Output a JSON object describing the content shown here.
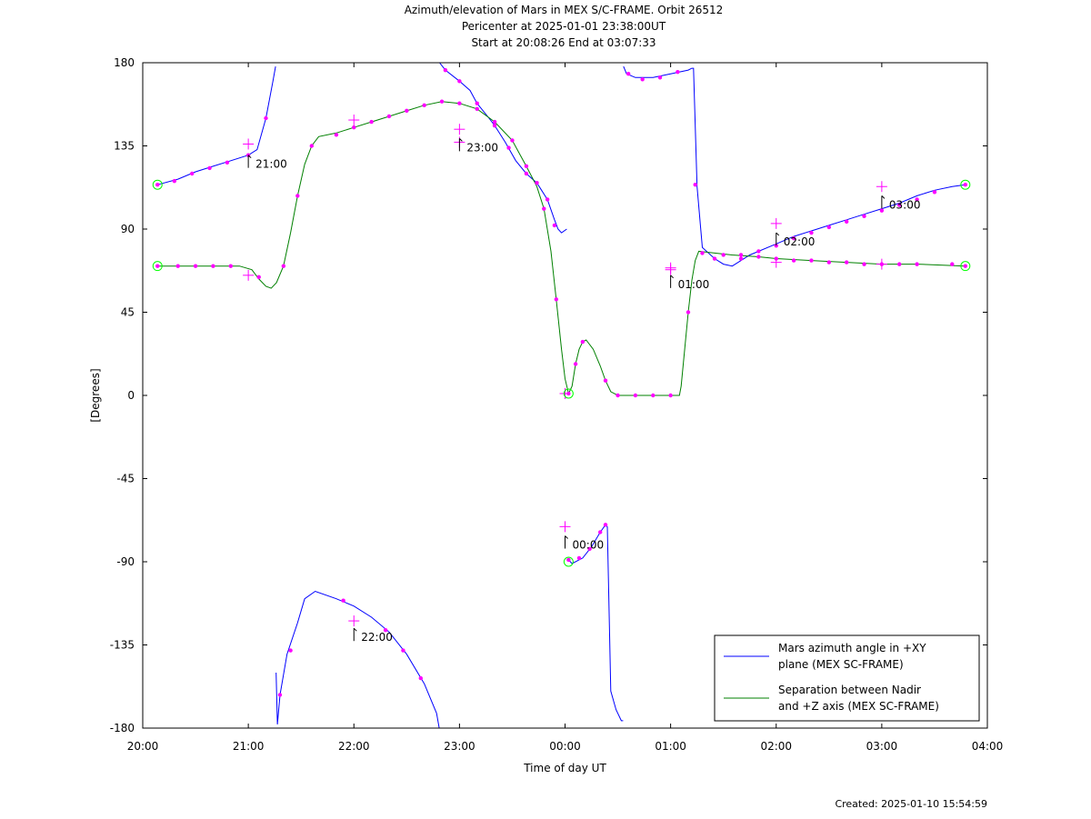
{
  "header": {
    "title": "Azimuth/elevation of Mars in MEX S/C-FRAME.  Orbit 26512",
    "subtitle_1": "Pericenter at 2025-01-01 23:38:00UT",
    "subtitle_2": "Start at 20:08:26 End at 03:07:33"
  },
  "footer": {
    "created": "Created: 2025-01-10 15:54:59"
  },
  "colors": {
    "azimuth": "#0000ff",
    "separation": "#008000",
    "markers": "#ff00ff",
    "endpoints": "#00ff00"
  },
  "chart_data": {
    "type": "line",
    "title": "Azimuth/elevation of Mars in MEX S/C-FRAME.  Orbit 26512",
    "xlabel": "Time of day UT",
    "ylabel": "[Degrees]",
    "xlim": [
      0,
      480
    ],
    "ylim": [
      -180,
      180
    ],
    "x_unit": "minutes after 20:00 UT",
    "xticks": [
      0,
      60,
      120,
      180,
      240,
      300,
      360,
      420,
      480
    ],
    "xtick_labels": [
      "20:00",
      "21:00",
      "22:00",
      "23:00",
      "00:00",
      "01:00",
      "02:00",
      "03:00",
      "04:00"
    ],
    "yticks": [
      180,
      135,
      90,
      45,
      0,
      -45,
      -90,
      -135,
      -180
    ],
    "ytick_labels": [
      "180",
      "135",
      "90",
      "45",
      "0",
      "-45",
      "-90",
      "-135",
      "-180"
    ],
    "legend_position": "bottom-right",
    "series": [
      {
        "name": "Mars azimuth angle in +XY plane (MEX SC-FRAME)",
        "legend_lines": [
          "Mars azimuth angle in +XY",
          "plane (MEX SC-FRAME)"
        ],
        "color": "#0000ff",
        "segments": [
          [
            [
              8.4,
              114
            ],
            [
              20,
              117
            ],
            [
              30,
              121
            ],
            [
              40,
              124
            ],
            [
              50,
              127
            ],
            [
              60,
              130
            ],
            [
              65,
              133
            ],
            [
              70,
              150
            ],
            [
              74,
              170
            ],
            [
              75.5,
              178
            ]
          ],
          [
            [
              75.8,
              -150
            ],
            [
              76.5,
              -178
            ],
            [
              78,
              -162
            ],
            [
              82,
              -140
            ],
            [
              88,
              -123
            ],
            [
              92,
              -110
            ],
            [
              98,
              -106
            ],
            [
              110,
              -110
            ],
            [
              120,
              -114
            ],
            [
              130,
              -120
            ],
            [
              140,
              -128
            ],
            [
              150,
              -140
            ],
            [
              160,
              -156
            ],
            [
              167,
              -172
            ],
            [
              168.5,
              -180
            ]
          ],
          [
            [
              168.7,
              180
            ],
            [
              172,
              176
            ],
            [
              180,
              170
            ],
            [
              186,
              165
            ],
            [
              190,
              158
            ],
            [
              196,
              151
            ],
            [
              200,
              146
            ],
            [
              206,
              137
            ],
            [
              212,
              127
            ],
            [
              218,
              120
            ],
            [
              224,
              115
            ],
            [
              226,
              112
            ],
            [
              230,
              106
            ],
            [
              234,
              95
            ],
            [
              236,
              90
            ],
            [
              238,
              88
            ],
            [
              241,
              90
            ]
          ],
          [
            [
              242,
              -89
            ],
            [
              244,
              -91
            ],
            [
              250,
              -88
            ],
            [
              255,
              -82
            ],
            [
              260,
              -74
            ],
            [
              263,
              -70
            ],
            [
              264,
              -71
            ],
            [
              266,
              -160
            ],
            [
              269,
              -170
            ],
            [
              272,
              -176
            ],
            [
              273,
              -176
            ]
          ],
          [
            [
              273.2,
              178
            ],
            [
              275,
              174
            ],
            [
              280,
              172
            ],
            [
              290,
              172
            ],
            [
              300,
              174
            ],
            [
              310,
              176
            ],
            [
              312,
              177
            ],
            [
              313,
              177
            ],
            [
              315,
              113
            ],
            [
              318,
              80
            ],
            [
              325,
              74
            ],
            [
              330,
              71
            ],
            [
              335,
              70
            ],
            [
              345,
              76
            ],
            [
              360,
              82
            ],
            [
              370,
              86
            ],
            [
              380,
              89
            ],
            [
              390,
              92
            ],
            [
              400,
              95
            ],
            [
              410,
              98
            ],
            [
              420,
              101
            ],
            [
              430,
              104
            ],
            [
              440,
              108
            ],
            [
              450,
              111
            ],
            [
              460,
              113
            ],
            [
              467.5,
              114
            ]
          ]
        ],
        "markers": [
          [
            8.4,
            114
          ],
          [
            18,
            116
          ],
          [
            28,
            120
          ],
          [
            38,
            123
          ],
          [
            48,
            126
          ],
          [
            60,
            130
          ],
          [
            70,
            150
          ],
          [
            78,
            -162
          ],
          [
            84,
            -138
          ],
          [
            114,
            -111
          ],
          [
            138,
            -127
          ],
          [
            148,
            -138
          ],
          [
            158,
            -153
          ],
          [
            172,
            176
          ],
          [
            180,
            170
          ],
          [
            190,
            158
          ],
          [
            200,
            146
          ],
          [
            208,
            134
          ],
          [
            218,
            120
          ],
          [
            224,
            115
          ],
          [
            230,
            106
          ],
          [
            234,
            92
          ],
          [
            242,
            -89
          ],
          [
            248,
            -88
          ],
          [
            254,
            -83
          ],
          [
            260,
            -74
          ],
          [
            263,
            -70
          ],
          [
            276,
            174
          ],
          [
            284,
            171
          ],
          [
            294,
            172
          ],
          [
            304,
            175
          ],
          [
            314,
            114
          ],
          [
            325,
            74
          ],
          [
            340,
            74
          ],
          [
            350,
            78
          ],
          [
            360,
            81
          ],
          [
            370,
            85
          ],
          [
            380,
            88
          ],
          [
            390,
            91
          ],
          [
            400,
            94
          ],
          [
            410,
            97
          ],
          [
            420,
            100
          ],
          [
            430,
            103
          ],
          [
            440,
            106
          ],
          [
            450,
            110
          ],
          [
            467.5,
            114
          ]
        ],
        "hour_marks": [
          [
            60,
            136
          ],
          [
            120,
            -122
          ],
          [
            180,
            137
          ],
          [
            240,
            -71
          ],
          [
            300,
            69
          ],
          [
            360,
            93
          ],
          [
            420,
            113
          ]
        ],
        "endpoints": [
          [
            8.4,
            114
          ],
          [
            467.5,
            114
          ],
          [
            242,
            -90
          ]
        ]
      },
      {
        "name": "Separation between Nadir and +Z axis (MEX SC-FRAME)",
        "legend_lines": [
          "Separation between Nadir",
          "and +Z axis (MEX SC-FRAME)"
        ],
        "color": "#008000",
        "segments": [
          [
            [
              8.4,
              70
            ],
            [
              20,
              70
            ],
            [
              40,
              70
            ],
            [
              55,
              70
            ],
            [
              62,
              68
            ],
            [
              66,
              63
            ],
            [
              70,
              59
            ],
            [
              73,
              58
            ],
            [
              76,
              61
            ],
            [
              80,
              70
            ],
            [
              84,
              88
            ],
            [
              88,
              108
            ],
            [
              92,
              125
            ],
            [
              96,
              135
            ],
            [
              100,
              140
            ],
            [
              110,
              142
            ],
            [
              120,
              145
            ],
            [
              130,
              148
            ],
            [
              140,
              151
            ],
            [
              150,
              154
            ],
            [
              160,
              157
            ],
            [
              170,
              159
            ],
            [
              180,
              158
            ],
            [
              190,
              155
            ],
            [
              200,
              148
            ],
            [
              210,
              138
            ],
            [
              218,
              124
            ],
            [
              224,
              113
            ],
            [
              228,
              101
            ],
            [
              232,
              78
            ],
            [
              235,
              52
            ],
            [
              238,
              25
            ],
            [
              240,
              9
            ],
            [
              242,
              1
            ],
            [
              244,
              5
            ],
            [
              246,
              17
            ],
            [
              248,
              25
            ],
            [
              250,
              29
            ],
            [
              252,
              30
            ],
            [
              256,
              25
            ],
            [
              260,
              16
            ],
            [
              263,
              8
            ],
            [
              266,
              2
            ],
            [
              270,
              0
            ],
            [
              280,
              0
            ],
            [
              290,
              0
            ],
            [
              300,
              0
            ],
            [
              305,
              0
            ],
            [
              306,
              5
            ],
            [
              308,
              25
            ],
            [
              310,
              45
            ],
            [
              312,
              62
            ],
            [
              314,
              73
            ],
            [
              316,
              78
            ],
            [
              325,
              77
            ],
            [
              335,
              76
            ],
            [
              350,
              75
            ],
            [
              360,
              74
            ],
            [
              380,
              73
            ],
            [
              400,
              72
            ],
            [
              420,
              71
            ],
            [
              440,
              71
            ],
            [
              467.5,
              70
            ]
          ]
        ],
        "markers": [
          [
            8.4,
            70
          ],
          [
            20,
            70
          ],
          [
            30,
            70
          ],
          [
            40,
            70
          ],
          [
            50,
            70
          ],
          [
            66,
            64
          ],
          [
            80,
            70
          ],
          [
            88,
            108
          ],
          [
            96,
            135
          ],
          [
            110,
            141
          ],
          [
            120,
            145
          ],
          [
            130,
            148
          ],
          [
            140,
            151
          ],
          [
            150,
            154
          ],
          [
            160,
            157
          ],
          [
            170,
            159
          ],
          [
            180,
            158
          ],
          [
            190,
            155
          ],
          [
            200,
            148
          ],
          [
            210,
            138
          ],
          [
            218,
            124
          ],
          [
            228,
            101
          ],
          [
            235,
            52
          ],
          [
            242,
            1
          ],
          [
            246,
            17
          ],
          [
            250,
            29
          ],
          [
            263,
            8
          ],
          [
            270,
            0
          ],
          [
            280,
            0
          ],
          [
            290,
            0
          ],
          [
            300,
            0
          ],
          [
            310,
            45
          ],
          [
            318,
            77
          ],
          [
            330,
            76
          ],
          [
            340,
            76
          ],
          [
            350,
            75
          ],
          [
            360,
            74
          ],
          [
            370,
            73
          ],
          [
            380,
            73
          ],
          [
            390,
            72
          ],
          [
            400,
            72
          ],
          [
            410,
            71
          ],
          [
            420,
            71
          ],
          [
            430,
            71
          ],
          [
            440,
            71
          ],
          [
            460,
            71
          ],
          [
            467.5,
            70
          ]
        ],
        "hour_marks": [
          [
            60,
            65
          ],
          [
            120,
            149
          ],
          [
            180,
            144
          ],
          [
            240,
            1
          ],
          [
            300,
            68
          ],
          [
            360,
            72
          ],
          [
            420,
            71
          ]
        ],
        "endpoints": [
          [
            8.4,
            70
          ],
          [
            467.5,
            70
          ],
          [
            242,
            1
          ]
        ]
      }
    ],
    "annotations": [
      {
        "label": "21:00",
        "x": 60,
        "y": 130
      },
      {
        "label": "22:00",
        "x": 120,
        "y": -126
      },
      {
        "label": "23:00",
        "x": 180,
        "y": 139
      },
      {
        "label": "00:00",
        "x": 240,
        "y": -76
      },
      {
        "label": "01:00",
        "x": 300,
        "y": 65
      },
      {
        "label": "02:00",
        "x": 360,
        "y": 88
      },
      {
        "label": "03:00",
        "x": 420,
        "y": 108
      }
    ]
  }
}
